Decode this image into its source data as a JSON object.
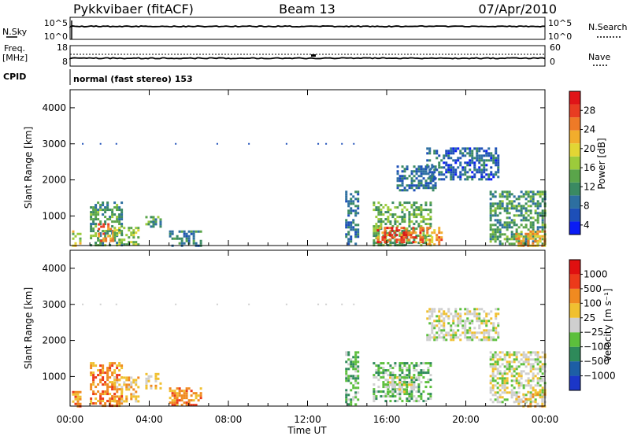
{
  "header": {
    "station": "Pykkvibaer (fitACF)",
    "beam": "Beam 13",
    "date": "07/Apr/2010"
  },
  "top_panels": {
    "nsky_label": "N.Sky",
    "nsky_ticks": [
      "10^5",
      "10^0"
    ],
    "nsearch_label": "N.Search",
    "nsearch_ticks": [
      "10^5",
      "10^0"
    ],
    "freq_label": "Freq.",
    "freq_unit": "[MHz]",
    "freq_ticks": [
      "18",
      "8"
    ],
    "nave_label": "Nave",
    "nave_ticks": [
      "60",
      "0"
    ],
    "cpid_label": "CPID",
    "cpid_text": "normal (fast stereo) 153"
  },
  "chart_data": [
    {
      "type": "heatmap",
      "name": "power",
      "ylabel": "Slant Range [km]",
      "xlim": [
        0,
        24
      ],
      "ylim": [
        180,
        4500
      ],
      "yticks": [
        "4000",
        "3000",
        "2000",
        "1000"
      ],
      "ytick_values": [
        4000,
        3000,
        2000,
        1000
      ],
      "colorbar": {
        "label": "Power [dB]",
        "ticks": [
          "28",
          "24",
          "20",
          "16",
          "12",
          "8",
          "4"
        ],
        "range": [
          0,
          30
        ],
        "colors": [
          "#0a1cf5",
          "#1d4fb8",
          "#2d6fa0",
          "#3a8a62",
          "#5aa54a",
          "#9ccb3b",
          "#e2d634",
          "#f2ad2c",
          "#ee7a27",
          "#e83c22",
          "#e01418"
        ]
      },
      "echo_regions": [
        {
          "t": [
            0.1,
            0.5
          ],
          "r": [
            200,
            600
          ],
          "v": 16
        },
        {
          "t": [
            1.0,
            2.6
          ],
          "r": [
            200,
            1400
          ],
          "v": 10
        },
        {
          "t": [
            1.4,
            2.2
          ],
          "r": [
            300,
            800
          ],
          "v": 24
        },
        {
          "t": [
            2.2,
            3.4
          ],
          "r": [
            200,
            700
          ],
          "v": 14
        },
        {
          "t": [
            3.8,
            4.6
          ],
          "r": [
            700,
            1000
          ],
          "v": 10
        },
        {
          "t": [
            5.0,
            6.6
          ],
          "r": [
            200,
            600
          ],
          "v": 8
        },
        {
          "t": [
            13.9,
            14.6
          ],
          "r": [
            200,
            1700
          ],
          "v": 6
        },
        {
          "t": [
            15.3,
            18.2
          ],
          "r": [
            200,
            1400
          ],
          "v": 12
        },
        {
          "t": [
            15.5,
            17.8
          ],
          "r": [
            250,
            700
          ],
          "v": 26
        },
        {
          "t": [
            16.5,
            18.5
          ],
          "r": [
            1700,
            2400
          ],
          "v": 6
        },
        {
          "t": [
            18.0,
            21.6
          ],
          "r": [
            2000,
            2900
          ],
          "v": 5
        },
        {
          "t": [
            18.0,
            18.8
          ],
          "r": [
            200,
            700
          ],
          "v": 22
        },
        {
          "t": [
            21.2,
            24.0
          ],
          "r": [
            200,
            1700
          ],
          "v": 10
        },
        {
          "t": [
            22.5,
            24.0
          ],
          "r": [
            200,
            600
          ],
          "v": 20
        }
      ]
    },
    {
      "type": "heatmap",
      "name": "velocity",
      "ylabel": "Slant Range [km]",
      "xlabel": "Time UT",
      "xlim": [
        0,
        24
      ],
      "ylim": [
        180,
        4500
      ],
      "xticks": [
        "00:00",
        "04:00",
        "08:00",
        "12:00",
        "16:00",
        "20:00",
        "00:00"
      ],
      "yticks": [
        "4000",
        "3000",
        "2000",
        "1000"
      ],
      "ytick_values": [
        4000,
        3000,
        2000,
        1000
      ],
      "colorbar": {
        "label": "Velocity [m s⁻¹]",
        "ticks": [
          "1000",
          "500",
          "100",
          "25",
          "−25",
          "−100",
          "−500",
          "−1000"
        ],
        "colors": [
          "#1b36c8",
          "#1d5ea5",
          "#2e8a5a",
          "#5cbf3c",
          "#cfcfcf",
          "#f0c030",
          "#f08a20",
          "#ec3a1a",
          "#e01010"
        ]
      },
      "echo_regions": [
        {
          "t": [
            0.1,
            0.5
          ],
          "r": [
            200,
            600
          ],
          "c": 6
        },
        {
          "t": [
            1.0,
            2.6
          ],
          "r": [
            200,
            1400
          ],
          "c": 6
        },
        {
          "t": [
            2.2,
            3.4
          ],
          "r": [
            300,
            1000
          ],
          "c": 5
        },
        {
          "t": [
            3.8,
            4.6
          ],
          "r": [
            700,
            1100
          ],
          "c": 5
        },
        {
          "t": [
            5.0,
            6.6
          ],
          "r": [
            200,
            700
          ],
          "c": 6
        },
        {
          "t": [
            13.9,
            14.6
          ],
          "r": [
            200,
            1700
          ],
          "c": 3
        },
        {
          "t": [
            15.3,
            18.2
          ],
          "r": [
            300,
            1400
          ],
          "c": 3
        },
        {
          "t": [
            16.0,
            17.5
          ],
          "r": [
            600,
            1000
          ],
          "c": 4
        },
        {
          "t": [
            18.0,
            21.6
          ],
          "r": [
            2000,
            2900
          ],
          "c": 4
        },
        {
          "t": [
            21.2,
            24.0
          ],
          "r": [
            300,
            1700
          ],
          "c": 4
        },
        {
          "t": [
            22.5,
            24.0
          ],
          "r": [
            200,
            600
          ],
          "c": 5
        }
      ]
    }
  ]
}
